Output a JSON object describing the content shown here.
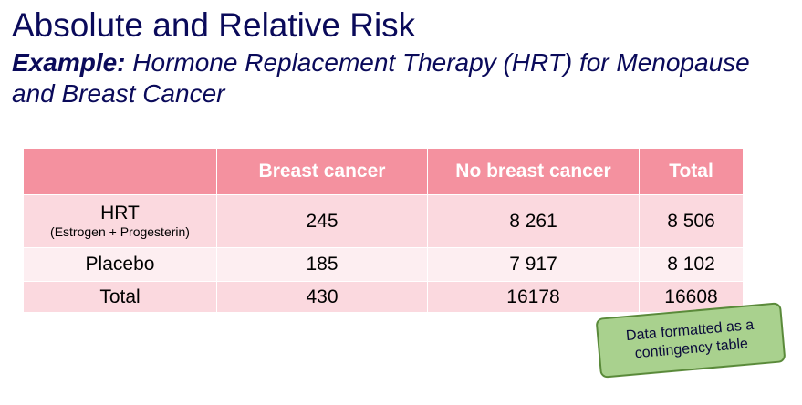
{
  "title": "Absolute and Relative Risk",
  "subtitle": {
    "lead": "Example:",
    "text": " Hormone Replacement Therapy (HRT) for Menopause and Breast Cancer"
  },
  "table": {
    "headers": [
      "",
      "Breast cancer",
      "No breast cancer",
      "Total"
    ],
    "rows": [
      {
        "label": "HRT",
        "sublabel": "(Estrogen + Progesterin)",
        "cells": [
          "245",
          "8 261",
          "8 506"
        ]
      },
      {
        "label": "Placebo",
        "cells": [
          "185",
          "7 917",
          "8 102"
        ]
      },
      {
        "label": "Total",
        "cells": [
          "430",
          "16178",
          "16608"
        ]
      }
    ]
  },
  "note": "Data formatted as a contingency table",
  "colors": {
    "header_fill": "#f4919f",
    "row_fill_dark": "#fbd9df",
    "row_fill_light": "#fdeef1",
    "note_fill": "#a9d18e",
    "title_text": "#0a0a5a"
  }
}
